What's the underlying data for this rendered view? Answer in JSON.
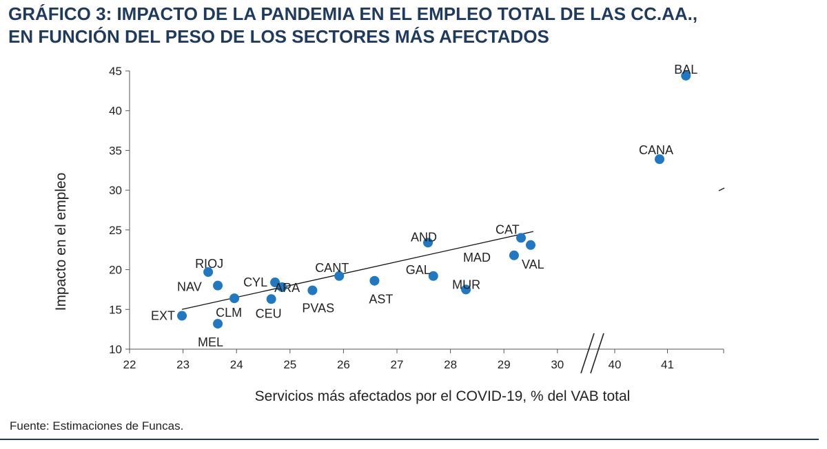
{
  "title": {
    "line1": "GRÁFICO 3: IMPACTO DE LA PANDEMIA EN EL EMPLEO TOTAL DE LAS CC.AA.,",
    "line2": "EN FUNCIÓN DEL PESO DE LOS SECTORES MÁS AFECTADOS"
  },
  "source": "Fuente: Estimaciones de Funcas.",
  "colors": {
    "point": "#1f78c1",
    "title": "#1f3a5f",
    "text": "#222222"
  },
  "chart_data": {
    "type": "scatter",
    "xlabel": "Servicios más afectados por el COVID-19, % del VAB total",
    "ylabel": "Impacto en el empleo",
    "ylim": [
      10,
      45
    ],
    "y_ticks": [
      "10",
      "15",
      "20",
      "25",
      "30",
      "35",
      "40",
      "45"
    ],
    "x_ticks": [
      "22",
      "23",
      "24",
      "25",
      "26",
      "27",
      "28",
      "29",
      "30",
      "40",
      "41"
    ],
    "x_axis_break": "between 30 and 40",
    "grid": false,
    "legend": "none",
    "points": [
      {
        "label": "EXT",
        "x": 22.98,
        "y": 14.2
      },
      {
        "label": "MEL",
        "x": 23.65,
        "y": 13.2
      },
      {
        "label": "RIOJ",
        "x": 23.47,
        "y": 19.7
      },
      {
        "label": "NAV",
        "x": 23.65,
        "y": 18.0
      },
      {
        "label": "CLM",
        "x": 23.96,
        "y": 16.4
      },
      {
        "label": "CEU",
        "x": 24.65,
        "y": 16.3
      },
      {
        "label": "CYL",
        "x": 24.72,
        "y": 18.4
      },
      {
        "label": "ARA",
        "x": 24.85,
        "y": 17.8
      },
      {
        "label": "PVAS",
        "x": 25.42,
        "y": 17.4
      },
      {
        "label": "CANT",
        "x": 25.92,
        "y": 19.2
      },
      {
        "label": "AST",
        "x": 26.58,
        "y": 18.6
      },
      {
        "label": "AND",
        "x": 27.58,
        "y": 23.4
      },
      {
        "label": "GAL",
        "x": 27.68,
        "y": 19.2
      },
      {
        "label": "MUR",
        "x": 28.29,
        "y": 17.5
      },
      {
        "label": "MAD",
        "x": 29.19,
        "y": 21.8
      },
      {
        "label": "CAT",
        "x": 29.32,
        "y": 24.0
      },
      {
        "label": "VAL",
        "x": 29.5,
        "y": 23.1
      },
      {
        "label": "CANA",
        "x": 40.85,
        "y": 33.9
      },
      {
        "label": "BAL",
        "x": 41.35,
        "y": 44.4
      }
    ],
    "trendline": {
      "x": [
        22.98,
        29.55
      ],
      "y": [
        15.0,
        24.8
      ]
    }
  }
}
